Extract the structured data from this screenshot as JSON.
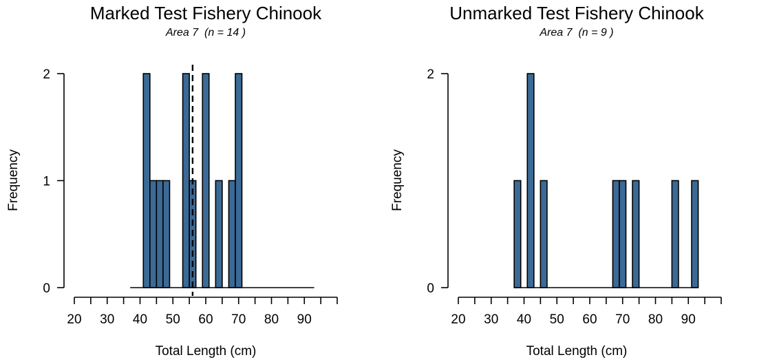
{
  "chart_data": [
    {
      "type": "bar",
      "title": "Marked Test Fishery Chinook",
      "subtitle": "Area 7  (n = 14 )",
      "xlabel": "Total Length (cm)",
      "ylabel": "Frequency",
      "xlim": [
        20,
        100
      ],
      "ylim": [
        0,
        2
      ],
      "xticks": [
        20,
        25,
        30,
        35,
        40,
        45,
        50,
        55,
        60,
        65,
        70,
        75,
        80,
        85,
        90,
        95,
        100
      ],
      "xtick_labels": [
        "20",
        "30",
        "40",
        "50",
        "60",
        "70",
        "80",
        "90"
      ],
      "yticks": [
        0,
        1,
        2
      ],
      "ytick_labels": [
        "0",
        "1",
        "2"
      ],
      "bin_width": 2,
      "bins": [
        {
          "x0": 41,
          "x1": 43,
          "count": 2
        },
        {
          "x0": 43,
          "x1": 45,
          "count": 1
        },
        {
          "x0": 45,
          "x1": 47,
          "count": 1
        },
        {
          "x0": 47,
          "x1": 49,
          "count": 1
        },
        {
          "x0": 53,
          "x1": 55,
          "count": 2
        },
        {
          "x0": 55,
          "x1": 57,
          "count": 1
        },
        {
          "x0": 59,
          "x1": 61,
          "count": 2
        },
        {
          "x0": 63,
          "x1": 65,
          "count": 1
        },
        {
          "x0": 67,
          "x1": 69,
          "count": 1
        },
        {
          "x0": 69,
          "x1": 71,
          "count": 2
        }
      ],
      "baseline_range": [
        37,
        93
      ],
      "mean_line": 56,
      "bar_color": "#3b6a96",
      "grid": false
    },
    {
      "type": "bar",
      "title": "Unmarked Test Fishery Chinook",
      "subtitle": "Area 7  (n = 9 )",
      "xlabel": "Total Length (cm)",
      "ylabel": "Frequency",
      "xlim": [
        20,
        100
      ],
      "ylim": [
        0,
        2
      ],
      "xticks": [
        20,
        25,
        30,
        35,
        40,
        45,
        50,
        55,
        60,
        65,
        70,
        75,
        80,
        85,
        90,
        95,
        100
      ],
      "xtick_labels": [
        "20",
        "30",
        "40",
        "50",
        "60",
        "70",
        "80",
        "90"
      ],
      "yticks": [
        0,
        2
      ],
      "ytick_labels": [
        "0",
        "2"
      ],
      "bin_width": 2,
      "bins": [
        {
          "x0": 37,
          "x1": 39,
          "count": 1
        },
        {
          "x0": 41,
          "x1": 43,
          "count": 2
        },
        {
          "x0": 45,
          "x1": 47,
          "count": 1
        },
        {
          "x0": 67,
          "x1": 69,
          "count": 1
        },
        {
          "x0": 69,
          "x1": 71,
          "count": 1
        },
        {
          "x0": 73,
          "x1": 75,
          "count": 1
        },
        {
          "x0": 85,
          "x1": 87,
          "count": 1
        },
        {
          "x0": 91,
          "x1": 93,
          "count": 1
        }
      ],
      "baseline_range": [
        37,
        93
      ],
      "mean_line": null,
      "bar_color": "#3b6a96",
      "grid": false
    }
  ]
}
